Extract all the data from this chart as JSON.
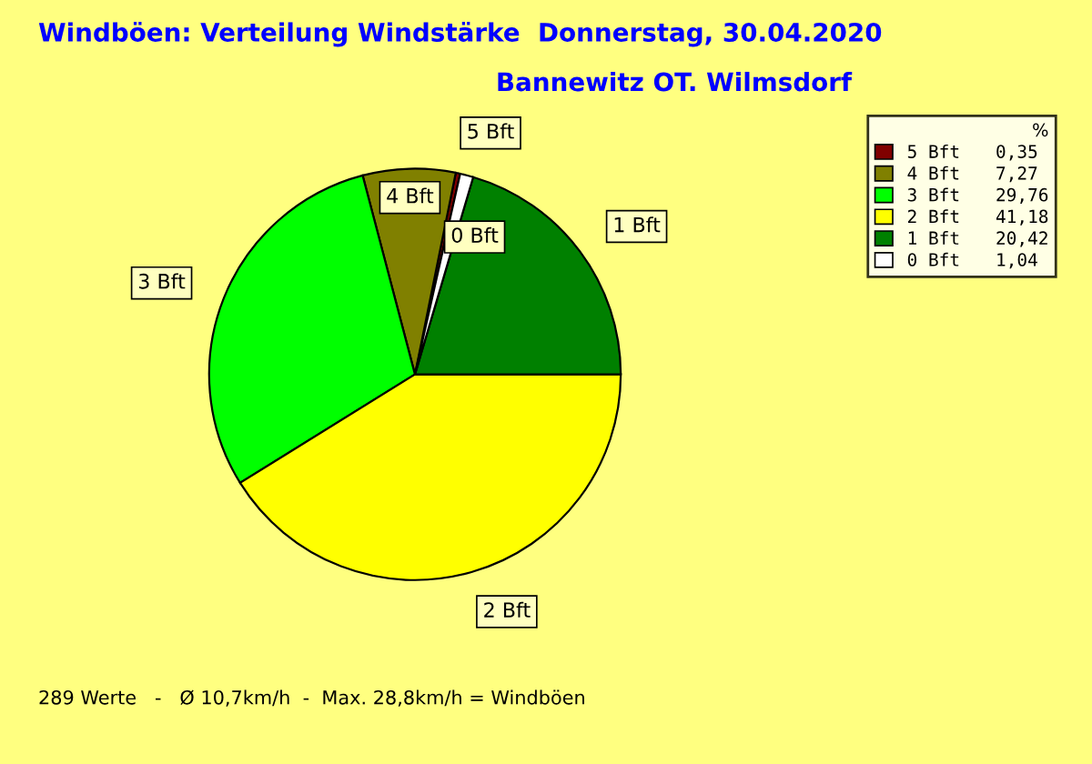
{
  "chart_data": {
    "type": "pie",
    "title": "Windböen: Verteilung Windstärke  Donnerstag, 30.04.2020",
    "subtitle": "Bannewitz OT. Wilmsdorf",
    "categories": [
      "5 Bft",
      "4 Bft",
      "3 Bft",
      "2 Bft",
      "1 Bft",
      "0 Bft"
    ],
    "values": [
      0.35,
      7.27,
      29.76,
      41.18,
      20.42,
      1.04
    ],
    "value_labels": [
      "0,35",
      "7,27",
      "29,76",
      "41,18",
      "20,42",
      "1,04"
    ],
    "colors": [
      "#800000",
      "#808000",
      "#00ff00",
      "#ffff00",
      "#008000",
      "#ffffff"
    ],
    "legend": "top right",
    "legend_title": "%",
    "annotations": [
      "289 Werte   -   Ø 10,7km/h  -  Max. 28,8km/h = Windböen"
    ]
  }
}
